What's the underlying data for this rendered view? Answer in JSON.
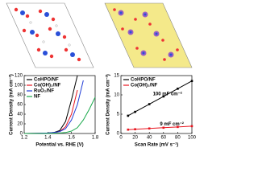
{
  "chart_data": [
    {
      "type": "line",
      "y_label": "Current Density (mA cm⁻²)",
      "x_label": "Potential vs. RHE (V)",
      "x": [
        1.2,
        1.3,
        1.4,
        1.45,
        1.5,
        1.55,
        1.6,
        1.65,
        1.7,
        1.75,
        1.8
      ],
      "series": [
        {
          "name": "CoHPO/NF",
          "color": "#000000",
          "values": [
            0,
            0.5,
            1,
            2,
            6,
            25,
            70,
            120,
            null,
            null,
            null
          ]
        },
        {
          "name": "Co(OH)₂/NF",
          "color": "#e8141e",
          "values": [
            0,
            0.3,
            0.8,
            1.5,
            4,
            14,
            40,
            90,
            null,
            null,
            null
          ]
        },
        {
          "name": "RuO₂/NF",
          "color": "#1f3bd6",
          "values": [
            0,
            0.5,
            1,
            2,
            4,
            10,
            28,
            60,
            110,
            null,
            null
          ]
        },
        {
          "name": "NF",
          "color": "#18a84a",
          "values": [
            0,
            0,
            0.3,
            0.6,
            1,
            2,
            5,
            12,
            28,
            50,
            75
          ]
        }
      ],
      "xlim": [
        1.2,
        1.8
      ],
      "xticks": [
        1.2,
        1.4,
        1.6,
        1.8
      ],
      "ylim": [
        0,
        120
      ],
      "yticks": [
        0,
        20,
        40,
        60,
        80,
        100,
        120
      ],
      "legend": "upper-left"
    },
    {
      "type": "line",
      "y_label": "Current Density (mA cm⁻²)",
      "x_label": "Scan Rate (mV s⁻¹)",
      "x": [
        10,
        20,
        40,
        60,
        80,
        100
      ],
      "marker": "square",
      "series": [
        {
          "name": "CoHPO/NF",
          "color": "#000000",
          "values": [
            4.6,
            5.6,
            7.6,
            9.6,
            11.6,
            13.6
          ]
        },
        {
          "name": "Co(OH)₂/NF",
          "color": "#e8141e",
          "values": [
            1.0,
            1.1,
            1.3,
            1.5,
            1.7,
            1.9
          ]
        }
      ],
      "annotations": [
        "100 mF cm⁻²",
        "9 mF cm⁻²"
      ],
      "xlim": [
        0,
        100
      ],
      "xticks": [
        0,
        20,
        40,
        60,
        80,
        100
      ],
      "ylim": [
        0,
        15
      ],
      "yticks": [
        0,
        5,
        10,
        15
      ],
      "legend": "upper-left"
    }
  ]
}
